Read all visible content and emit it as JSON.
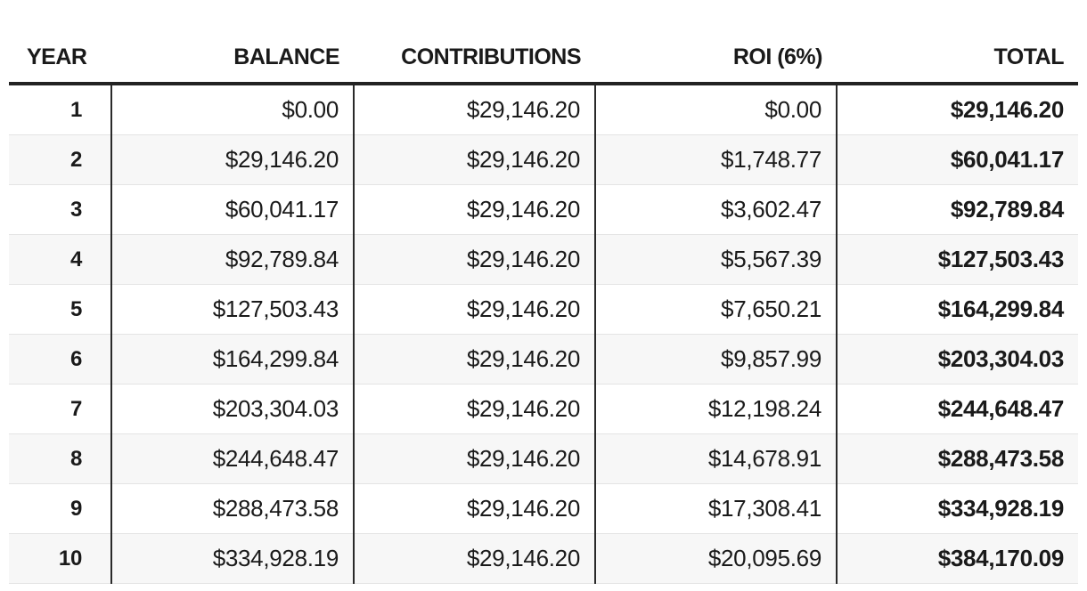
{
  "table": {
    "headers": {
      "year": "YEAR",
      "balance": "BALANCE",
      "contributions": "CONTRIBUTIONS",
      "roi": "ROI (6%)",
      "total": "TOTAL"
    },
    "rows": [
      {
        "year": "1",
        "balance": "$0.00",
        "contributions": "$29,146.20",
        "roi": "$0.00",
        "total": "$29,146.20"
      },
      {
        "year": "2",
        "balance": "$29,146.20",
        "contributions": "$29,146.20",
        "roi": "$1,748.77",
        "total": "$60,041.17"
      },
      {
        "year": "3",
        "balance": "$60,041.17",
        "contributions": "$29,146.20",
        "roi": "$3,602.47",
        "total": "$92,789.84"
      },
      {
        "year": "4",
        "balance": "$92,789.84",
        "contributions": "$29,146.20",
        "roi": "$5,567.39",
        "total": "$127,503.43"
      },
      {
        "year": "5",
        "balance": "$127,503.43",
        "contributions": "$29,146.20",
        "roi": "$7,650.21",
        "total": "$164,299.84"
      },
      {
        "year": "6",
        "balance": "$164,299.84",
        "contributions": "$29,146.20",
        "roi": "$9,857.99",
        "total": "$203,304.03"
      },
      {
        "year": "7",
        "balance": "$203,304.03",
        "contributions": "$29,146.20",
        "roi": "$12,198.24",
        "total": "$244,648.47"
      },
      {
        "year": "8",
        "balance": "$244,648.47",
        "contributions": "$29,146.20",
        "roi": "$14,678.91",
        "total": "$288,473.58"
      },
      {
        "year": "9",
        "balance": "$288,473.58",
        "contributions": "$29,146.20",
        "roi": "$17,308.41",
        "total": "$334,928.19"
      },
      {
        "year": "10",
        "balance": "$334,928.19",
        "contributions": "$29,146.20",
        "roi": "$20,095.69",
        "total": "$384,170.09"
      }
    ]
  }
}
